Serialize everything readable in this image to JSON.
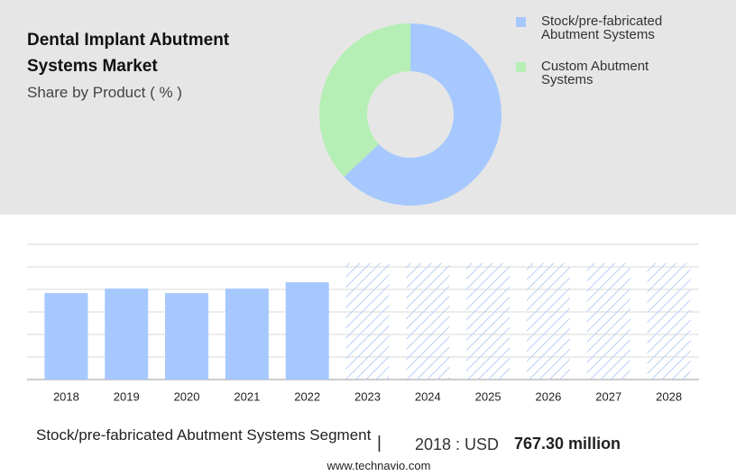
{
  "chart_data": [
    {
      "type": "donut",
      "title": "Dental Implant Abutment Systems Market",
      "subtitle": "Share by Product ( % )",
      "series": [
        {
          "name": "Stock/pre-fabricated Abutment Systems",
          "color": "#a6c8ff",
          "values": [
            63
          ]
        },
        {
          "name": "Custom Abutment Systems",
          "color": "#b5efb5",
          "values": [
            37
          ]
        }
      ]
    },
    {
      "type": "bar",
      "categories": [
        "2018",
        "2019",
        "2020",
        "2021",
        "2022",
        "2023",
        "2024",
        "2025",
        "2026",
        "2027",
        "2028"
      ],
      "values": [
        767.3,
        807,
        767,
        807,
        863,
        null,
        null,
        null,
        null,
        null,
        null
      ],
      "color": "#a6c8ff",
      "ylim": [
        0,
        1200
      ],
      "yticks": [
        0,
        200,
        400,
        600,
        800,
        1000,
        1200
      ],
      "grid": true
    }
  ],
  "footer": {
    "segment": "Stock/pre-fabricated Abutment Systems Segment",
    "separator": "|",
    "year_label": "2018 : USD",
    "amount": "767.30 million",
    "site": "www.technavio.com"
  }
}
